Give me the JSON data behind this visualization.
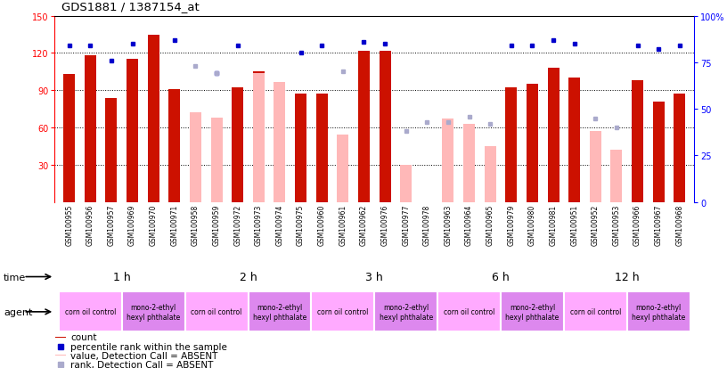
{
  "title": "GDS1881 / 1387154_at",
  "samples": [
    "GSM100955",
    "GSM100956",
    "GSM100957",
    "GSM100969",
    "GSM100970",
    "GSM100971",
    "GSM100958",
    "GSM100959",
    "GSM100972",
    "GSM100973",
    "GSM100974",
    "GSM100975",
    "GSM100960",
    "GSM100961",
    "GSM100962",
    "GSM100976",
    "GSM100977",
    "GSM100978",
    "GSM100963",
    "GSM100964",
    "GSM100965",
    "GSM100979",
    "GSM100980",
    "GSM100981",
    "GSM100951",
    "GSM100952",
    "GSM100953",
    "GSM100966",
    "GSM100967",
    "GSM100968"
  ],
  "count_present": [
    103,
    118,
    84,
    115,
    135,
    91,
    null,
    null,
    92,
    105,
    97,
    87,
    87,
    null,
    122,
    122,
    null,
    null,
    null,
    null,
    null,
    92,
    95,
    108,
    100,
    null,
    null,
    98,
    81,
    87
  ],
  "rank_present": [
    84,
    84,
    76,
    85,
    null,
    87,
    null,
    69,
    84,
    null,
    null,
    80,
    84,
    null,
    86,
    85,
    null,
    null,
    null,
    null,
    null,
    84,
    84,
    87,
    85,
    null,
    null,
    84,
    82,
    84
  ],
  "count_absent": [
    null,
    null,
    null,
    null,
    null,
    null,
    72,
    68,
    null,
    104,
    97,
    null,
    null,
    54,
    null,
    null,
    30,
    null,
    67,
    63,
    45,
    null,
    null,
    null,
    null,
    57,
    42,
    null,
    null,
    null
  ],
  "rank_absent": [
    null,
    null,
    null,
    null,
    null,
    null,
    73,
    69,
    null,
    null,
    null,
    null,
    null,
    70,
    null,
    null,
    38,
    43,
    43,
    46,
    42,
    null,
    null,
    null,
    null,
    45,
    40,
    null,
    null,
    null
  ],
  "time_groups": [
    {
      "label": "1 h",
      "start": 0,
      "end": 6
    },
    {
      "label": "2 h",
      "start": 6,
      "end": 12
    },
    {
      "label": "3 h",
      "start": 12,
      "end": 18
    },
    {
      "label": "6 h",
      "start": 18,
      "end": 24
    },
    {
      "label": "12 h",
      "start": 24,
      "end": 30
    }
  ],
  "agent_groups": [
    {
      "label": "corn oil control",
      "start": 0,
      "end": 3,
      "type": "corn"
    },
    {
      "label": "mono-2-ethyl\nhexyl phthalate",
      "start": 3,
      "end": 6,
      "type": "mono"
    },
    {
      "label": "corn oil control",
      "start": 6,
      "end": 9,
      "type": "corn"
    },
    {
      "label": "mono-2-ethyl\nhexyl phthalate",
      "start": 9,
      "end": 12,
      "type": "mono"
    },
    {
      "label": "corn oil control",
      "start": 12,
      "end": 15,
      "type": "corn"
    },
    {
      "label": "mono-2-ethyl\nhexyl phthalate",
      "start": 15,
      "end": 18,
      "type": "mono"
    },
    {
      "label": "corn oil control",
      "start": 18,
      "end": 21,
      "type": "corn"
    },
    {
      "label": "mono-2-ethyl\nhexyl phthalate",
      "start": 21,
      "end": 24,
      "type": "mono"
    },
    {
      "label": "corn oil control",
      "start": 24,
      "end": 27,
      "type": "corn"
    },
    {
      "label": "mono-2-ethyl\nhexyl phthalate",
      "start": 27,
      "end": 30,
      "type": "mono"
    }
  ],
  "yticks_left": [
    30,
    60,
    90,
    120,
    150
  ],
  "yticks_right": [
    0,
    25,
    50,
    75,
    100
  ],
  "color_red": "#CC1100",
  "color_pink": "#FFB8B8",
  "color_blue": "#0000CC",
  "color_lightblue": "#AAAACC",
  "color_time_bg": "#99EE88",
  "color_sample_bg": "#C8C8C8",
  "color_corn": "#FFAAFF",
  "color_mono": "#DD88EE",
  "bar_width": 0.55
}
